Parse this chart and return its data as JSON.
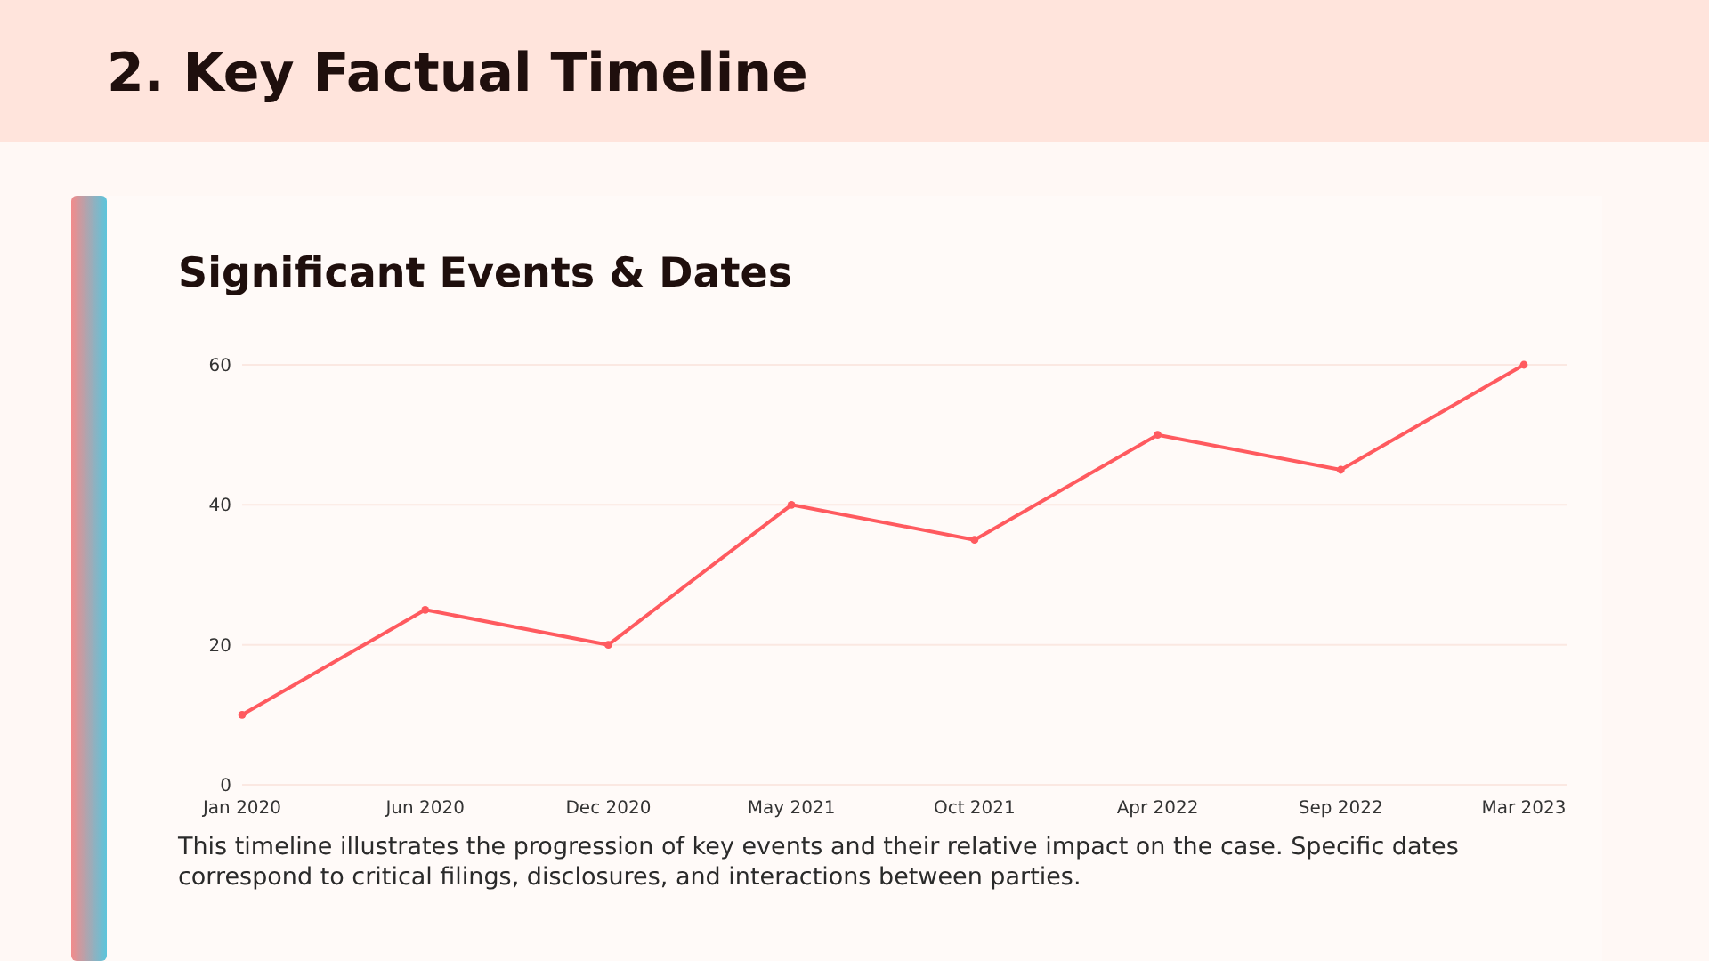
{
  "chart_data": {
    "type": "line",
    "title": "2. Key Factual Timeline",
    "subtitle": "Significant Events & Dates",
    "categories": [
      "Jan 2020",
      "Jun 2020",
      "Dec 2020",
      "May 2021",
      "Oct 2021",
      "Apr 2022",
      "Sep 2022",
      "Mar 2023"
    ],
    "series": [
      {
        "color": "#ff5a5f",
        "values": [
          10,
          25,
          20,
          40,
          35,
          50,
          45,
          60
        ]
      }
    ],
    "ylim": [
      0,
      60
    ],
    "yticks": [
      0,
      20,
      40,
      60
    ],
    "grid": "y",
    "marker": "circle",
    "line_style": "solid",
    "annotations": [
      "This timeline illustrates the progression of key events and their relative impact on the case. Specific dates correspond to critical filings, disclosures, and interactions between parties."
    ]
  }
}
